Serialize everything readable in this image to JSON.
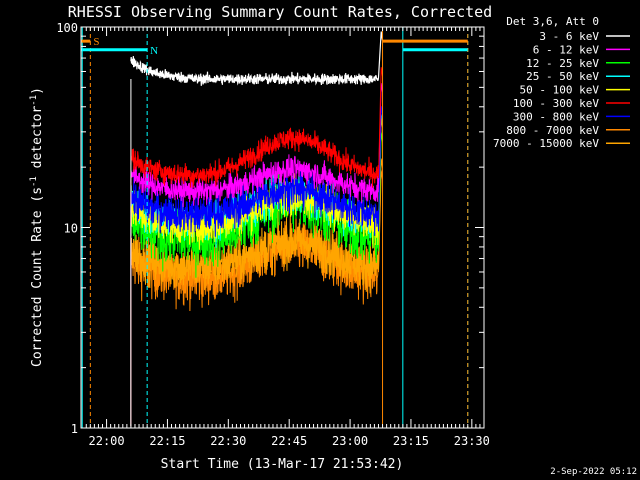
{
  "chart_data": {
    "type": "line",
    "title": "RHESSI Observing Summary Count Rates, Corrected",
    "xlabel": "Start Time (13-Mar-17 21:53:42)",
    "ylabel_text": "Corrected Count Rate (s",
    "ylabel_sup1": "-1",
    "ylabel_mid": " detector",
    "ylabel_sup2": "-1",
    "ylabel_end": ")",
    "ylabel": "Corrected Count Rate (s-1 detector-1)",
    "yscale": "log",
    "ylim": [
      1,
      100
    ],
    "xlim": [
      "21:53:42",
      "23:33:00"
    ],
    "x_ticks": [
      "22:00",
      "22:15",
      "22:30",
      "22:45",
      "23:00",
      "23:15",
      "23:30"
    ],
    "y_ticks": [
      "1",
      "10",
      "100"
    ],
    "legend_title": "Det 3,6, Att 0",
    "legend_location": "top-right",
    "series": [
      {
        "name": "3 - 6 keV",
        "color": "#ffffff",
        "baseline": 55,
        "bump": 0,
        "noise": 0.06
      },
      {
        "name": "6 - 12 keV",
        "color": "#ff00ff",
        "baseline": 15,
        "bump": 0.3,
        "noise": 0.14
      },
      {
        "name": "12 - 25 keV",
        "color": "#00ff00",
        "baseline": 8.5,
        "bump": 0.55,
        "noise": 0.3
      },
      {
        "name": "25 - 50 keV",
        "color": "#00ffff",
        "baseline": 10.5,
        "bump": 0.4,
        "noise": 0.2
      },
      {
        "name": "50 - 100 keV",
        "color": "#ffff00",
        "baseline": 10,
        "bump": 0.45,
        "noise": 0.2
      },
      {
        "name": "100 - 300 keV",
        "color": "#ff0000",
        "baseline": 18,
        "bump": 0.55,
        "noise": 0.12
      },
      {
        "name": "300 - 800 keV",
        "color": "#0000ff",
        "baseline": 11.5,
        "bump": 0.35,
        "noise": 0.2
      },
      {
        "name": "800 - 7000 keV",
        "color": "#ff8800",
        "baseline": 5.5,
        "bump": 0.45,
        "noise": 0.28
      },
      {
        "name": "7000 - 15000 keV",
        "color": "#ffa500",
        "baseline": 6.3,
        "bump": 0.35,
        "noise": 0.25
      }
    ],
    "data_start": "22:06",
    "data_end": "23:07",
    "bump_peak": "22:46",
    "flags": [
      {
        "label": "S",
        "color": "#ff8800",
        "start": "21:53:42",
        "end": "21:56",
        "level": 85
      },
      {
        "label": "N",
        "color": "#00ffff",
        "start": "21:53:42",
        "end": "22:10",
        "level": 77
      },
      {
        "label": "",
        "color": "#ff8800",
        "start": "23:08",
        "end": "23:29",
        "level": 85
      },
      {
        "label": "",
        "color": "#00ffff",
        "start": "23:13",
        "end": "23:29",
        "level": 77
      }
    ],
    "vlines": [
      {
        "time": "21:54",
        "color": "#00ffff",
        "style": "solid"
      },
      {
        "time": "21:56",
        "color": "#ff8800",
        "style": "dashed"
      },
      {
        "time": "22:10",
        "color": "#00ffff",
        "style": "dashed"
      },
      {
        "time": "23:08",
        "color": "#ff8800",
        "style": "solid"
      },
      {
        "time": "23:13",
        "color": "#00ffff",
        "style": "solid"
      },
      {
        "time": "23:29",
        "color": "#00ffff",
        "style": "dashed"
      },
      {
        "time": "23:29",
        "color": "#ff8800",
        "style": "dashed"
      }
    ],
    "footer": "2-Sep-2022 05:12"
  }
}
